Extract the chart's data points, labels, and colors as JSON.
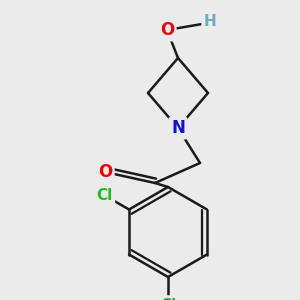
{
  "background_color": "#ebebeb",
  "bond_color": "#1a1a1a",
  "bond_width": 1.8,
  "atom_colors": {
    "O_carbonyl": "#ee0000",
    "O_hydroxy": "#ee0000",
    "N": "#1111cc",
    "Cl": "#22bb22",
    "H": "#6aacbc",
    "C": "#1a1a1a"
  },
  "figsize": [
    3.0,
    3.0
  ],
  "dpi": 100
}
